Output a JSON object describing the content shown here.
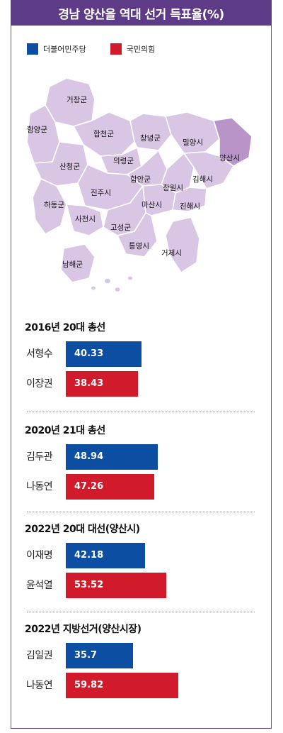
{
  "title": "경남 양산을 역대 선거 득표율(%)",
  "legend": [
    {
      "name": "더불어민주당",
      "color": "#0b4ea2"
    },
    {
      "name": "국민의힘",
      "color": "#d11a2a"
    }
  ],
  "map": {
    "regions": [
      "거창군",
      "함양군",
      "합천군",
      "창녕군",
      "밀양시",
      "양산시",
      "산청군",
      "의령군",
      "함안군",
      "창원시",
      "김해시",
      "하동군",
      "진주시",
      "사천시",
      "고성군",
      "마산시",
      "진해시",
      "통영시",
      "거제시",
      "남해군"
    ],
    "highlighted": "양산시",
    "fill": "#d9c6e4",
    "highlight_fill": "#b894c9"
  },
  "chart_data": [
    {
      "type": "bar",
      "title": "2016년 20대 총선",
      "categories": [
        "서형수",
        "이장권"
      ],
      "values": [
        40.33,
        38.43
      ],
      "colors": [
        "#0b4ea2",
        "#d11a2a"
      ]
    },
    {
      "type": "bar",
      "title": "2020년 21대 총선",
      "categories": [
        "김두관",
        "나동연"
      ],
      "values": [
        48.94,
        47.26
      ],
      "colors": [
        "#0b4ea2",
        "#d11a2a"
      ]
    },
    {
      "type": "bar",
      "title": "2022년 20대 대선(양산시)",
      "categories": [
        "이재명",
        "윤석열"
      ],
      "values": [
        42.18,
        53.52
      ],
      "colors": [
        "#0b4ea2",
        "#d11a2a"
      ]
    },
    {
      "type": "bar",
      "title": "2022년 지방선거(양산시장)",
      "categories": [
        "김일권",
        "나동연"
      ],
      "values": [
        35.7,
        59.82
      ],
      "colors": [
        "#0b4ea2",
        "#d11a2a"
      ]
    }
  ]
}
